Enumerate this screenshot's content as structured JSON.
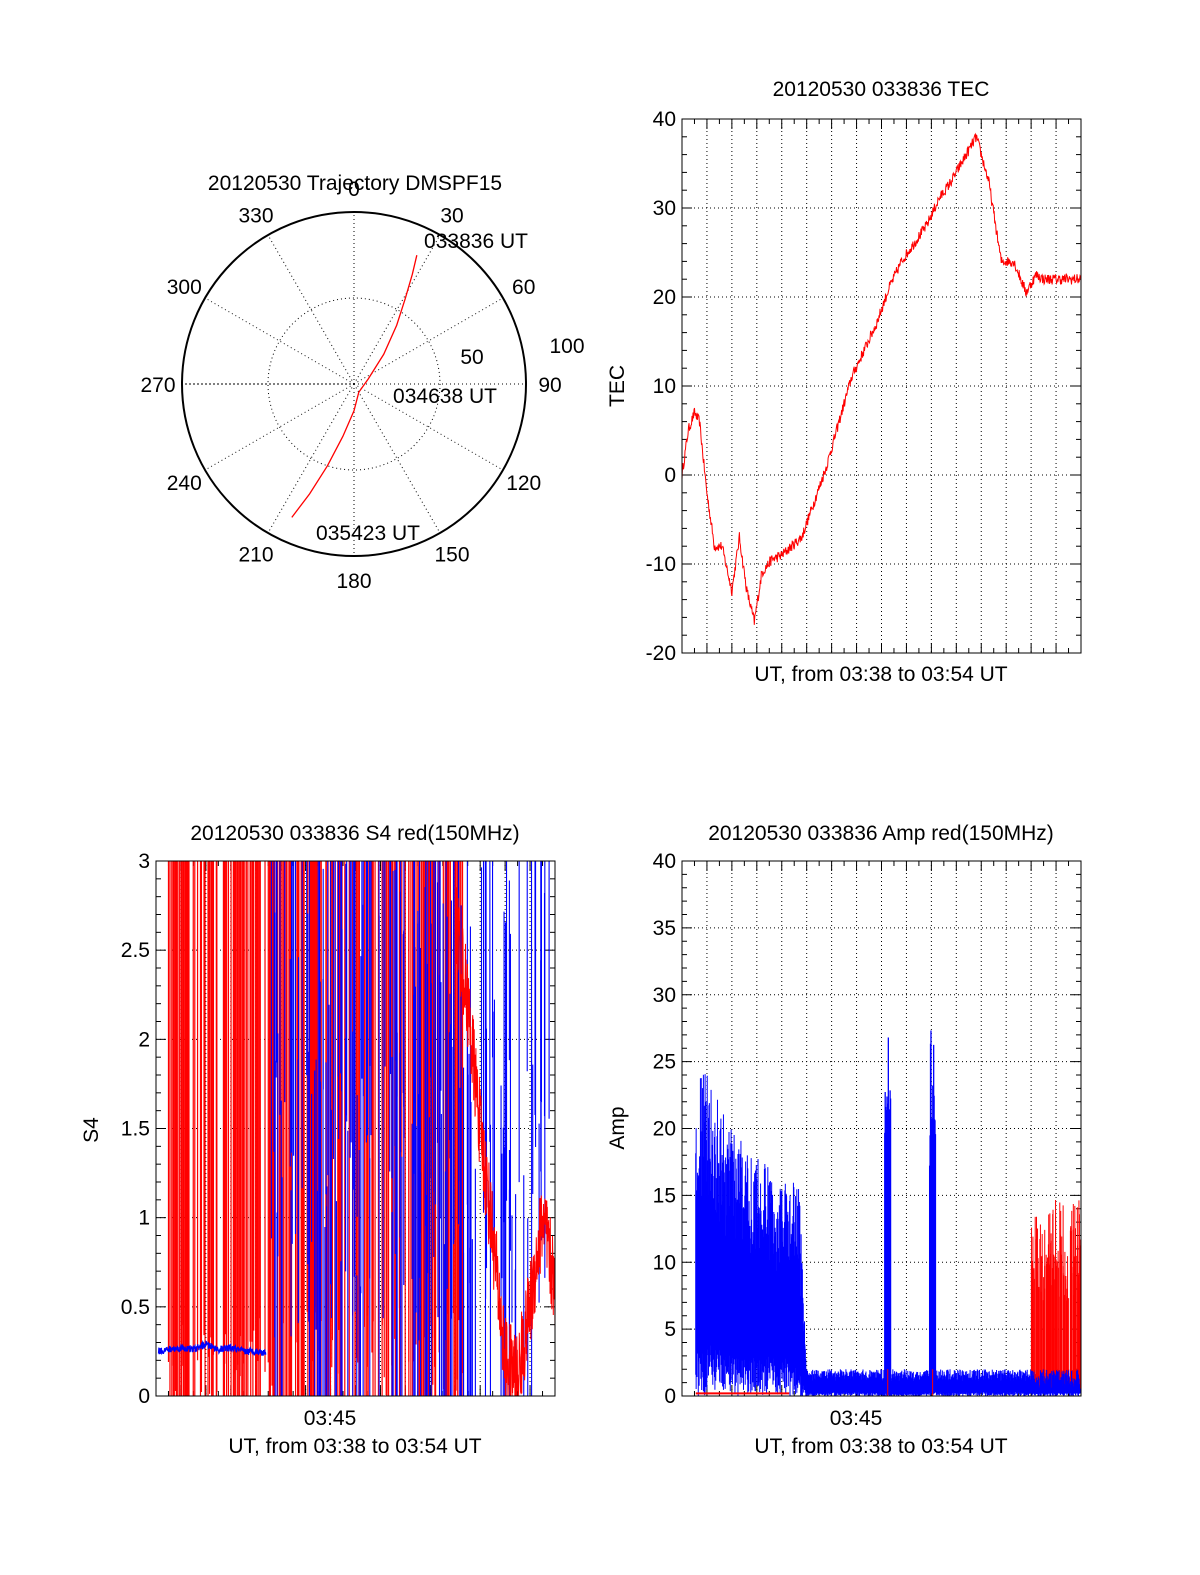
{
  "colors": {
    "red": "#ff0000",
    "blue": "#0000ff",
    "axis": "#000000"
  },
  "chart_data": [
    {
      "type": "polar",
      "title": "20120530 Trajectory DMSPF15",
      "angle_labels": [
        "0",
        "30",
        "60",
        "90",
        "120",
        "150",
        "180",
        "210",
        "240",
        "270",
        "300",
        "330"
      ],
      "radial_labels": [
        "50",
        "100"
      ],
      "rmax": 100,
      "track": [
        {
          "az": 26,
          "el": 15
        },
        {
          "az": 28,
          "el": 25
        },
        {
          "az": 31,
          "el": 38
        },
        {
          "az": 36,
          "el": 52
        },
        {
          "az": 45,
          "el": 68
        },
        {
          "az": 70,
          "el": 82
        },
        {
          "az": 150,
          "el": 85
        },
        {
          "az": 180,
          "el": 76
        },
        {
          "az": 192,
          "el": 62
        },
        {
          "az": 198,
          "el": 45
        },
        {
          "az": 202,
          "el": 28
        },
        {
          "az": 205,
          "el": 13
        }
      ],
      "time_labels": [
        "033836 UT",
        "034638 UT",
        "035423 UT"
      ],
      "grid": true
    },
    {
      "type": "line",
      "title": "20120530 033836 TEC",
      "xlabel": "UT, from 03:38 to 03:54 UT",
      "ylabel": "TEC",
      "xlim": [
        0,
        16
      ],
      "ylim": [
        -20,
        40
      ],
      "yticks": [
        "-20",
        "-10",
        "0",
        "10",
        "20",
        "30",
        "40"
      ],
      "grid": true,
      "series": [
        {
          "color": "#ff0000",
          "x": [
            0,
            0.25,
            0.5,
            0.7,
            1.0,
            1.3,
            1.6,
            2.0,
            2.3,
            2.6,
            2.9,
            3.2,
            3.6,
            4.0,
            4.4,
            4.8,
            5.3,
            5.8,
            6.3,
            6.8,
            7.3,
            7.8,
            8.3,
            8.8,
            9.3,
            9.8,
            10.3,
            10.8,
            11.3,
            11.8,
            12.3,
            12.8,
            13.3,
            13.8,
            14.2,
            14.5,
            14.8,
            15.1,
            15.5,
            15.8,
            16.0
          ],
          "y": [
            0,
            5,
            7,
            6,
            -2,
            -8,
            -8,
            -13,
            -7,
            -13,
            -16.5,
            -11,
            -9.5,
            -9,
            -8,
            -7,
            -3,
            1,
            6,
            11,
            14,
            17,
            21,
            24,
            26,
            28,
            31,
            33,
            35.5,
            38,
            33,
            24,
            24,
            20.5,
            22.5,
            22,
            22,
            22,
            22,
            22,
            22
          ]
        }
      ]
    },
    {
      "type": "line",
      "title": "20120530 033836 S4 red(150MHz)",
      "xlabel": "UT, from 03:38 to 03:54 UT",
      "ylabel": "S4",
      "xlim": [
        0,
        16
      ],
      "ylim": [
        0,
        3
      ],
      "xticks": [
        "03:45"
      ],
      "yticks": [
        "0",
        "0.5",
        "1",
        "1.5",
        "2",
        "2.5",
        "3"
      ],
      "grid": true,
      "series": [
        {
          "color": "#ff0000",
          "note_values": "dense vertical spikes 0 to 3 between 03:38 and 03:50; oscillations 0.1 to 1.5 afterwards",
          "x": [
            12.0,
            12.5,
            13.0,
            13.5,
            14.0,
            14.5,
            15.0,
            15.5,
            16.0
          ],
          "y": [
            2.7,
            2.2,
            1.5,
            0.9,
            0.2,
            0.1,
            0.5,
            1.0,
            0.6
          ]
        },
        {
          "color": "#0000ff",
          "x": [
            0,
            0.5,
            1.0,
            1.5,
            2.0,
            2.5,
            3.0,
            3.5,
            4.0,
            4.5
          ],
          "y": [
            0.25,
            0.26,
            0.27,
            0.26,
            0.29,
            0.26,
            0.27,
            0.25,
            0.25,
            0.24
          ]
        }
      ]
    },
    {
      "type": "line",
      "title": "20120530 033836 Amp red(150MHz)",
      "xlabel": "UT, from 03:38 to 03:54 UT",
      "ylabel": "Amp",
      "xlim": [
        0,
        16
      ],
      "ylim": [
        0,
        40
      ],
      "xticks": [
        "03:45"
      ],
      "yticks": [
        "0",
        "5",
        "10",
        "15",
        "20",
        "25",
        "30",
        "35",
        "40"
      ],
      "grid": true,
      "series": [
        {
          "color": "#0000ff",
          "x": [
            0,
            1,
            2,
            3,
            4,
            4.7,
            5,
            6,
            7,
            8,
            9,
            10,
            11,
            12,
            13,
            14,
            15,
            16
          ],
          "y_low": [
            3,
            4,
            3,
            3,
            3,
            2,
            0.2,
            0.3,
            0.3,
            0.2,
            0.2,
            0.3,
            0.3,
            0.3,
            0.3,
            0.3,
            0.3,
            0.3
          ],
          "y_high": [
            26,
            24,
            20,
            18,
            16,
            16,
            2,
            2,
            2,
            2,
            2,
            2,
            2,
            2,
            2,
            2,
            2,
            2
          ]
        },
        {
          "color": "#ff0000",
          "x": [
            14.0,
            14.5,
            15.0,
            15.5,
            16.0
          ],
          "y_low": [
            0.5,
            0.5,
            0.5,
            0.5,
            0.5
          ],
          "y_high": [
            14,
            13,
            15,
            14,
            15
          ]
        }
      ]
    }
  ]
}
